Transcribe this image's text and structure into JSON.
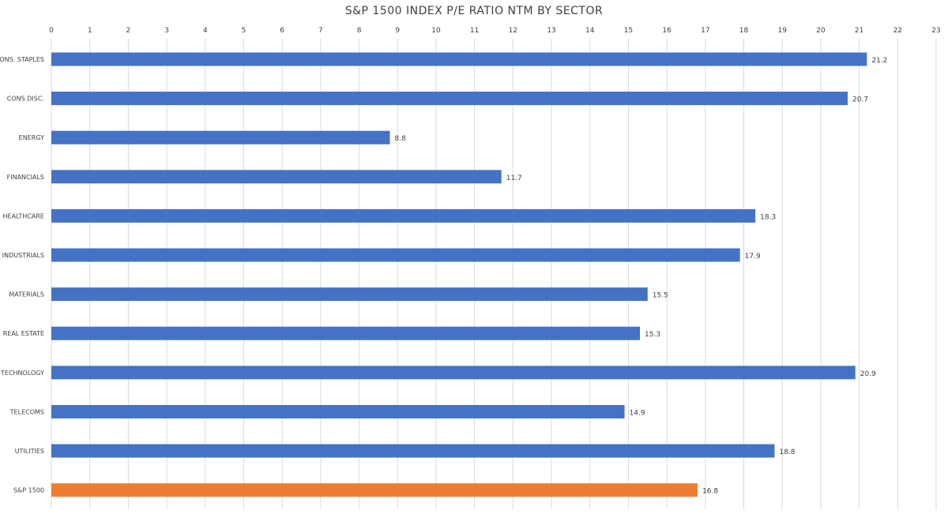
{
  "chart_data": {
    "type": "bar",
    "orientation": "horizontal",
    "title": "S&P 1500 INDEX P/E RATIO NTM BY SECTOR",
    "xlabel": "",
    "ylabel": "",
    "xlim": [
      0,
      23
    ],
    "x_ticks": [
      0,
      1,
      2,
      3,
      4,
      5,
      6,
      7,
      8,
      9,
      10,
      11,
      12,
      13,
      14,
      15,
      16,
      17,
      18,
      19,
      20,
      21,
      22,
      23
    ],
    "x_axis_position": "top",
    "grid": true,
    "legend": "none",
    "categories": [
      "CONS. STAPLES",
      "CONS.DISC.",
      "ENERGY",
      "FINANCIALS",
      "HEALTHCARE",
      "INDUSTRIALS",
      "MATERIALS",
      "REAL ESTATE",
      "TECHNOLOGY",
      "TELECOMS",
      "UTILITIES",
      "S&P 1500"
    ],
    "values": [
      21.2,
      20.7,
      8.8,
      11.7,
      18.3,
      17.9,
      15.5,
      15.3,
      20.9,
      14.9,
      18.8,
      16.8
    ],
    "value_labels": [
      "21.2",
      "20.7",
      "8.8",
      "11.7",
      "18.3",
      "17.9",
      "15.5",
      "15.3",
      "20.9",
      "14.9",
      "18.8",
      "16.8"
    ],
    "colors": {
      "sector": "#4472C4",
      "benchmark": "#ED7D31",
      "grid": "#d9d9d9",
      "text": "#404040"
    },
    "highlight_category": "S&P 1500"
  }
}
